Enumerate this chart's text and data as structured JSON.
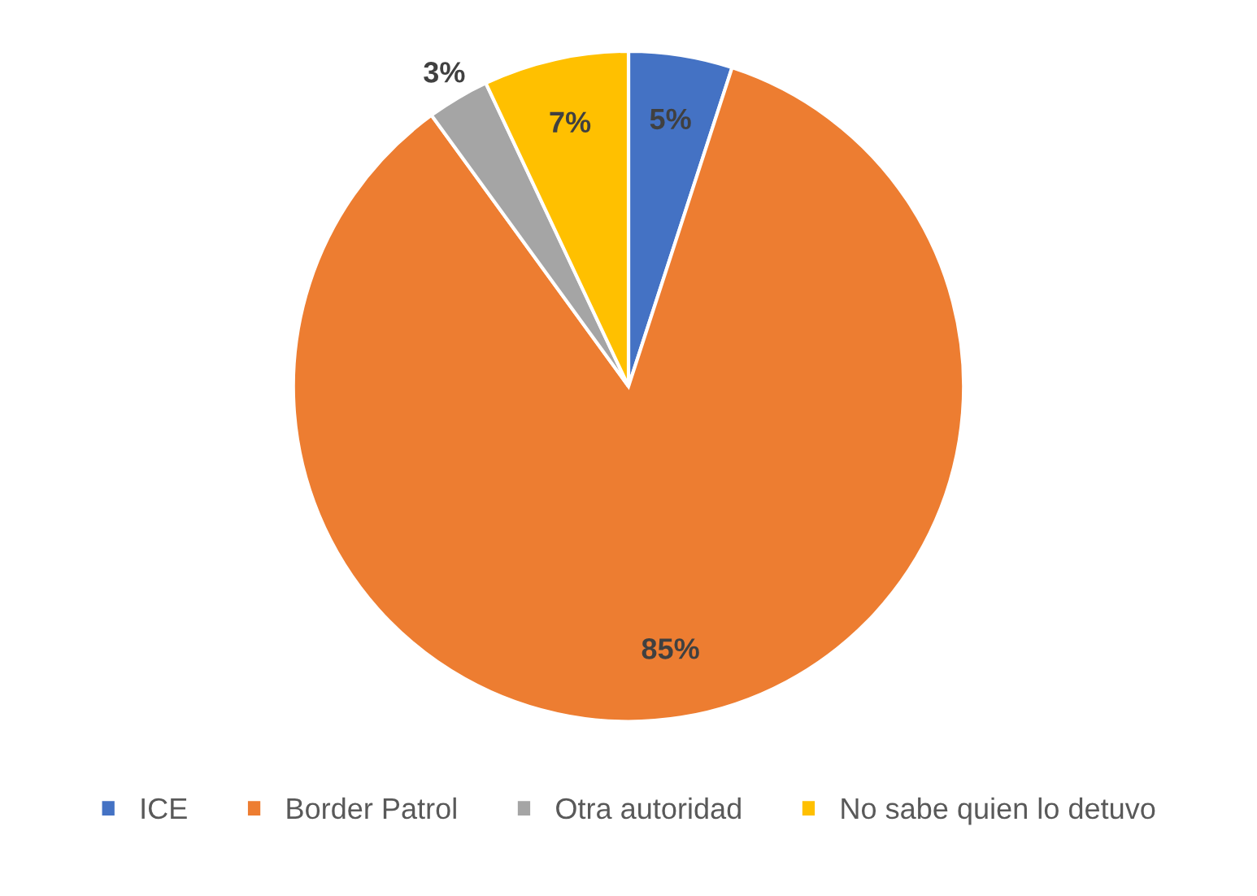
{
  "chart_data": {
    "type": "pie",
    "categories": [
      "ICE",
      "Border Patrol",
      "Otra autoridad",
      "No sabe quien lo detuvo"
    ],
    "values": [
      5,
      85,
      3,
      7
    ],
    "colors": [
      "#4472c4",
      "#ed7d31",
      "#a5a5a5",
      "#ffc000"
    ],
    "value_labels": [
      "5%",
      "85%",
      "3%",
      "7%"
    ],
    "legend": "bottom"
  }
}
